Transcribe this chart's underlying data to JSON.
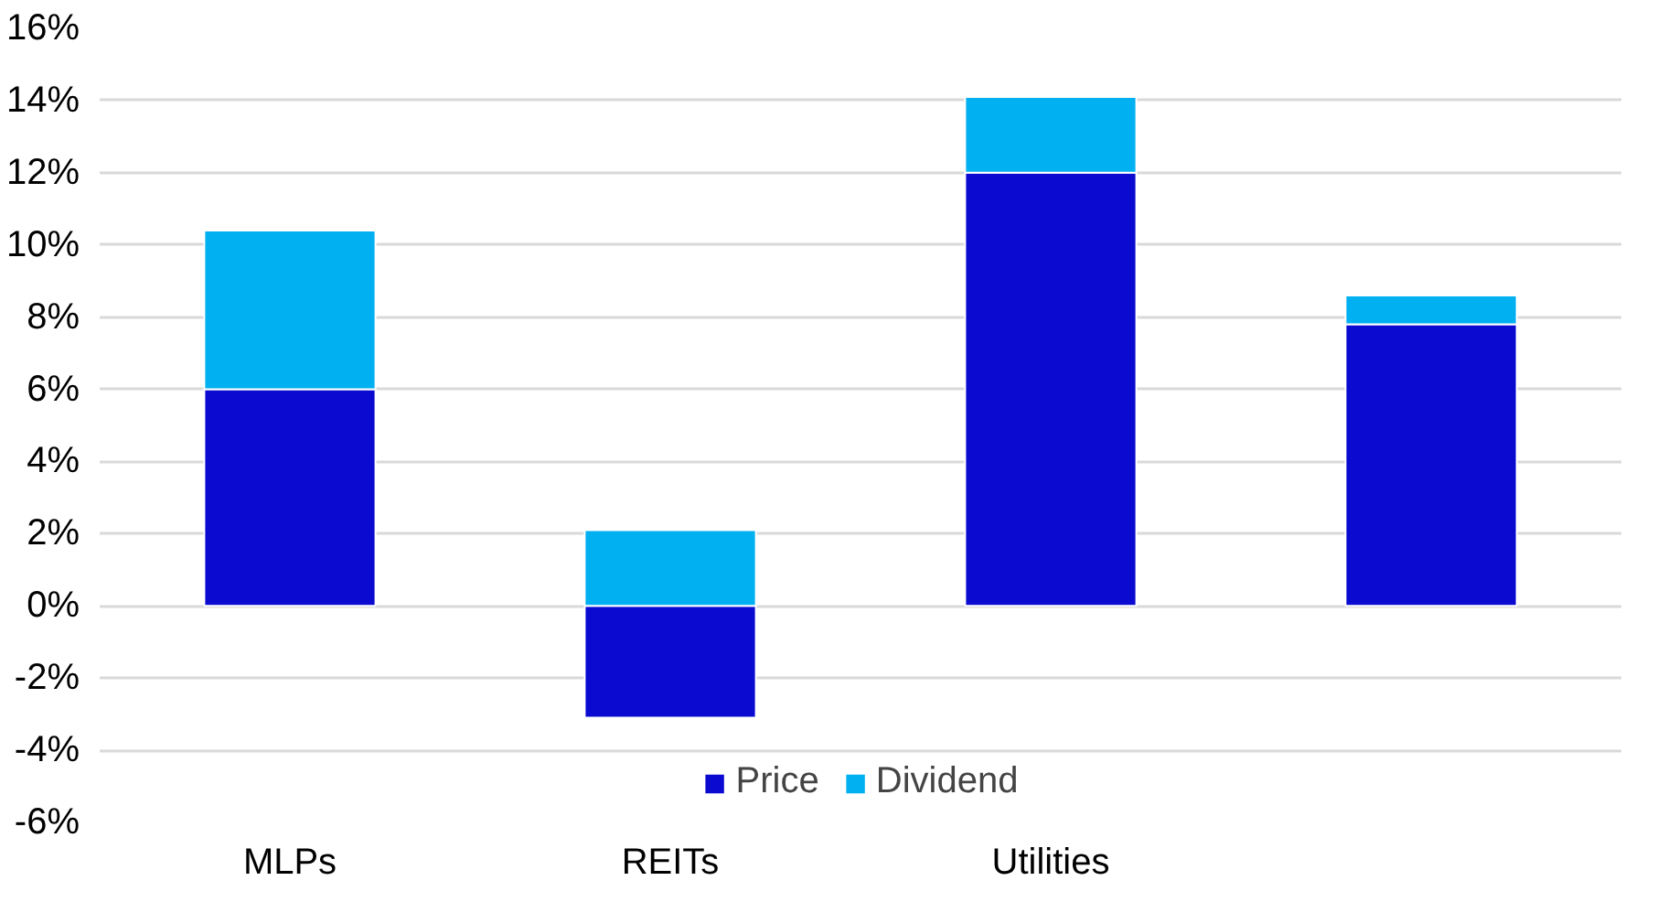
{
  "chart_data": {
    "type": "bar",
    "stacked": true,
    "categories": [
      "MLPs",
      "REITs",
      "Utilities",
      null
    ],
    "series": [
      {
        "name": "Price",
        "color": "#0a0ad0",
        "values": [
          6.0,
          -3.1,
          12.0,
          7.8
        ]
      },
      {
        "name": "Dividend",
        "color": "#00b0f0",
        "values": [
          4.4,
          2.1,
          2.1,
          0.8
        ]
      }
    ],
    "ylim": [
      -6,
      16
    ],
    "yticks": [
      {
        "value": -6,
        "label": "-6%"
      },
      {
        "value": -4,
        "label": "-4%"
      },
      {
        "value": -2,
        "label": "-2%"
      },
      {
        "value": 0,
        "label": "0%"
      },
      {
        "value": 2,
        "label": "2%"
      },
      {
        "value": 4,
        "label": "4%"
      },
      {
        "value": 6,
        "label": "6%"
      },
      {
        "value": 8,
        "label": "8%"
      },
      {
        "value": 10,
        "label": "10%"
      },
      {
        "value": 12,
        "label": "12%"
      },
      {
        "value": 14,
        "label": "14%"
      },
      {
        "value": 16,
        "label": "16%"
      }
    ],
    "grid": "y",
    "legend": "bottom"
  }
}
